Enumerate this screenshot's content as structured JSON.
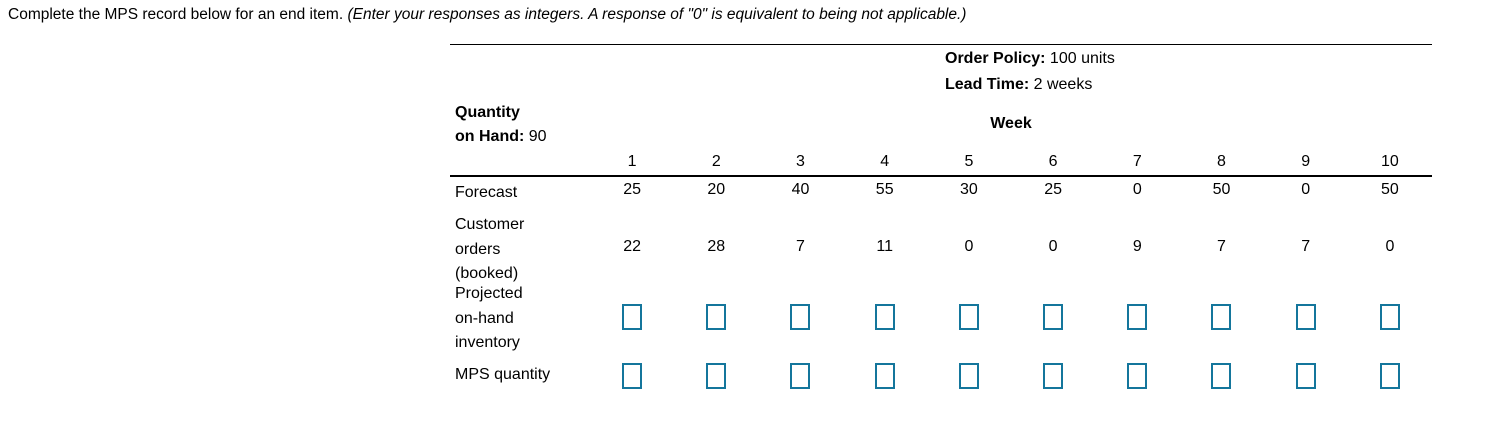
{
  "instruction": {
    "text": "Complete the MPS record below for an end item. ",
    "note": "(Enter your responses as integers. A response of \"0\" is equivalent to being not applicable.)"
  },
  "header": {
    "order_policy_label": "Order Policy:",
    "order_policy_value": " 100 units",
    "lead_time_label": "Lead Time:",
    "lead_time_value": " 2 weeks",
    "qty_on_hand_label": "Quantity\non Hand:",
    "qty_on_hand_value": "90",
    "week_label": "Week"
  },
  "columns": [
    "1",
    "2",
    "3",
    "4",
    "5",
    "6",
    "7",
    "8",
    "9",
    "10"
  ],
  "rows": {
    "forecast": {
      "label": "Forecast",
      "values": [
        "25",
        "20",
        "40",
        "55",
        "30",
        "25",
        "0",
        "50",
        "0",
        "50"
      ]
    },
    "customer_orders": {
      "label": "Customer\norders\n(booked)",
      "values": [
        "22",
        "28",
        "7",
        "11",
        "0",
        "0",
        "9",
        "7",
        "7",
        "0"
      ]
    },
    "projected_inventory": {
      "label": "Projected\non-hand\ninventory",
      "input_value": "",
      "input_placeholder": ""
    },
    "mps_quantity": {
      "label": "MPS quantity",
      "input_value": "",
      "input_placeholder": ""
    }
  },
  "colors": {
    "input_border": "#14769c",
    "table_lines": "#000000"
  }
}
